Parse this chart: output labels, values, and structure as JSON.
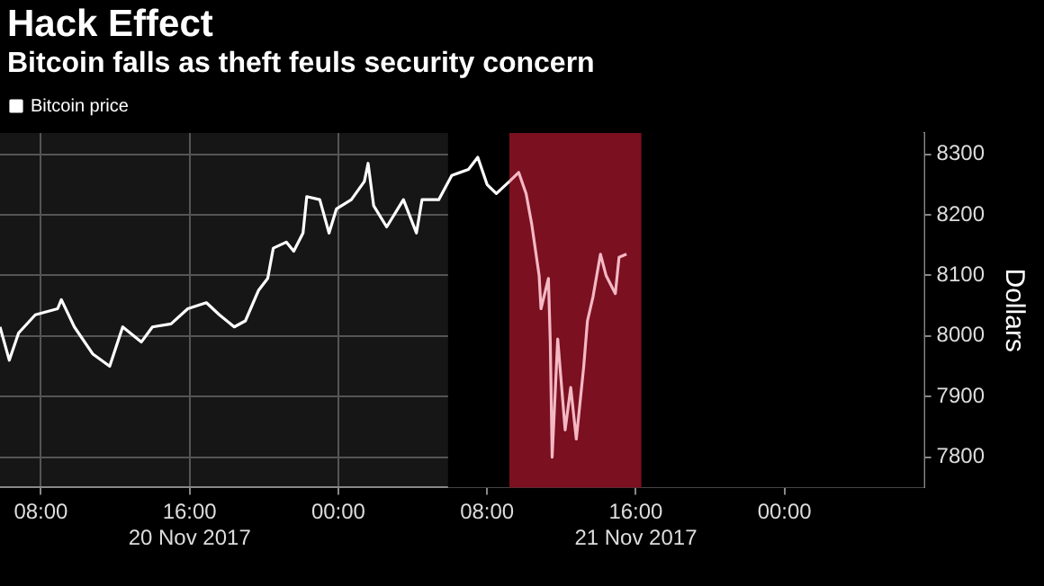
{
  "chart_data": {
    "type": "line",
    "title": "Hack Effect",
    "subtitle": "Bitcoin falls as theft feuls security concern",
    "ylabel": "Dollars",
    "xlim": [
      "2017-11-20T05:48",
      "2017-11-22T07:30"
    ],
    "ylim": [
      7750,
      8335
    ],
    "xticks": [
      {
        "value": "2017-11-20T08:00",
        "label": "08:00"
      },
      {
        "value": "2017-11-20T16:00",
        "label": "16:00\n20 Nov 2017"
      },
      {
        "value": "2017-11-21T00:00",
        "label": "00:00"
      },
      {
        "value": "2017-11-21T08:00",
        "label": "08:00"
      },
      {
        "value": "2017-11-21T16:00",
        "label": "16:00\n21 Nov 2017"
      },
      {
        "value": "2017-11-22T00:00",
        "label": "00:00"
      }
    ],
    "yticks": [
      7800,
      7900,
      8000,
      8100,
      8200,
      8300
    ],
    "grid": true,
    "legend": "top left",
    "marker": "none",
    "line_style": "solid",
    "bands": [
      {
        "axis": "x",
        "from": "2017-11-21T05:54",
        "to": "2017-11-22T07:30",
        "color": "#000000"
      },
      {
        "axis": "x",
        "from": "2017-11-21T09:12",
        "to": "2017-11-21T16:18",
        "color": "#7a1020"
      }
    ],
    "series": [
      {
        "name": "Bitcoin price",
        "color": "#ffffff",
        "x": [
          "2017-11-20T05:48",
          "2017-11-20T06:18",
          "2017-11-20T06:48",
          "2017-11-20T07:42",
          "2017-11-20T08:54",
          "2017-11-20T09:06",
          "2017-11-20T09:48",
          "2017-11-20T10:48",
          "2017-11-20T11:42",
          "2017-11-20T12:24",
          "2017-11-20T13:24",
          "2017-11-20T14:00",
          "2017-11-20T15:00",
          "2017-11-20T15:54",
          "2017-11-20T16:54",
          "2017-11-20T17:36",
          "2017-11-20T18:24",
          "2017-11-20T19:00",
          "2017-11-20T19:42",
          "2017-11-20T20:12",
          "2017-11-20T20:30",
          "2017-11-20T21:12",
          "2017-11-20T21:36",
          "2017-11-20T22:06",
          "2017-11-20T22:18",
          "2017-11-20T23:00",
          "2017-11-20T23:30",
          "2017-11-20T23:54",
          "2017-11-21T00:42",
          "2017-11-21T01:24",
          "2017-11-21T01:36",
          "2017-11-21T01:54",
          "2017-11-21T02:36",
          "2017-11-21T03:30",
          "2017-11-21T04:12",
          "2017-11-21T04:30",
          "2017-11-21T05:24",
          "2017-11-21T06:06",
          "2017-11-21T07:00",
          "2017-11-21T07:30",
          "2017-11-21T08:00",
          "2017-11-21T08:30",
          "2017-11-21T09:12"
        ],
        "values": [
          8015,
          7960,
          8005,
          8035,
          8045,
          8060,
          8015,
          7970,
          7950,
          8015,
          7990,
          8015,
          8020,
          8045,
          8055,
          8035,
          8015,
          8025,
          8075,
          8095,
          8145,
          8155,
          8140,
          8170,
          8230,
          8225,
          8170,
          8210,
          8225,
          8255,
          8285,
          8215,
          8180,
          8225,
          8170,
          8225,
          8225,
          8265,
          8275,
          8295,
          8250,
          8235,
          8255
        ]
      },
      {
        "color": "#f4b8c4",
        "x": [
          "2017-11-21T09:12",
          "2017-11-21T09:42",
          "2017-11-21T10:06",
          "2017-11-21T10:24",
          "2017-11-21T10:48",
          "2017-11-21T10:54",
          "2017-11-21T11:18",
          "2017-11-21T11:24",
          "2017-11-21T11:30",
          "2017-11-21T11:48",
          "2017-11-21T12:12",
          "2017-11-21T12:30",
          "2017-11-21T12:48",
          "2017-11-21T13:12",
          "2017-11-21T13:24",
          "2017-11-21T13:42",
          "2017-11-21T14:06",
          "2017-11-21T14:24",
          "2017-11-21T14:54",
          "2017-11-21T15:06",
          "2017-11-21T15:30"
        ],
        "values": [
          8255,
          8270,
          8235,
          8185,
          8100,
          8045,
          8095,
          7990,
          7800,
          7995,
          7845,
          7915,
          7830,
          7950,
          8025,
          8065,
          8135,
          8100,
          8070,
          8130,
          8135
        ]
      }
    ]
  }
}
